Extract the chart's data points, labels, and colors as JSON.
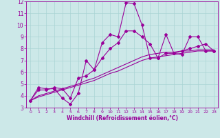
{
  "xlabel": "Windchill (Refroidissement éolien,°C)",
  "xlim": [
    -0.5,
    23.5
  ],
  "ylim": [
    3,
    12
  ],
  "yticks": [
    3,
    4,
    5,
    6,
    7,
    8,
    9,
    10,
    11,
    12
  ],
  "xticks": [
    0,
    1,
    2,
    3,
    4,
    5,
    6,
    7,
    8,
    9,
    10,
    11,
    12,
    13,
    14,
    15,
    16,
    17,
    18,
    19,
    20,
    21,
    22,
    23
  ],
  "bg_color": "#cce8e8",
  "grid_color": "#aad4d4",
  "line_color": "#990099",
  "series_marked": [
    [
      3.6,
      4.7,
      4.6,
      4.6,
      3.8,
      3.3,
      4.2,
      7.0,
      6.2,
      8.5,
      9.2,
      9.0,
      11.9,
      11.8,
      10.0,
      7.2,
      7.2,
      9.2,
      7.6,
      7.5,
      9.0,
      9.0,
      7.8,
      7.8
    ],
    [
      3.6,
      4.5,
      4.5,
      4.7,
      4.6,
      3.8,
      5.5,
      5.7,
      6.2,
      7.2,
      8.0,
      8.5,
      9.5,
      9.5,
      9.0,
      8.4,
      7.2,
      7.6,
      7.6,
      7.8,
      8.0,
      8.2,
      8.4,
      7.8
    ]
  ],
  "series_plain": [
    [
      3.6,
      4.0,
      4.2,
      4.4,
      4.6,
      4.8,
      5.0,
      5.3,
      5.5,
      5.8,
      6.1,
      6.4,
      6.7,
      7.0,
      7.3,
      7.5,
      7.6,
      7.7,
      7.7,
      7.8,
      7.8,
      7.9,
      7.9,
      7.9
    ],
    [
      3.6,
      3.9,
      4.1,
      4.3,
      4.5,
      4.7,
      4.9,
      5.1,
      5.3,
      5.6,
      5.9,
      6.1,
      6.4,
      6.7,
      7.0,
      7.2,
      7.3,
      7.4,
      7.5,
      7.6,
      7.7,
      7.8,
      7.8,
      7.8
    ]
  ]
}
